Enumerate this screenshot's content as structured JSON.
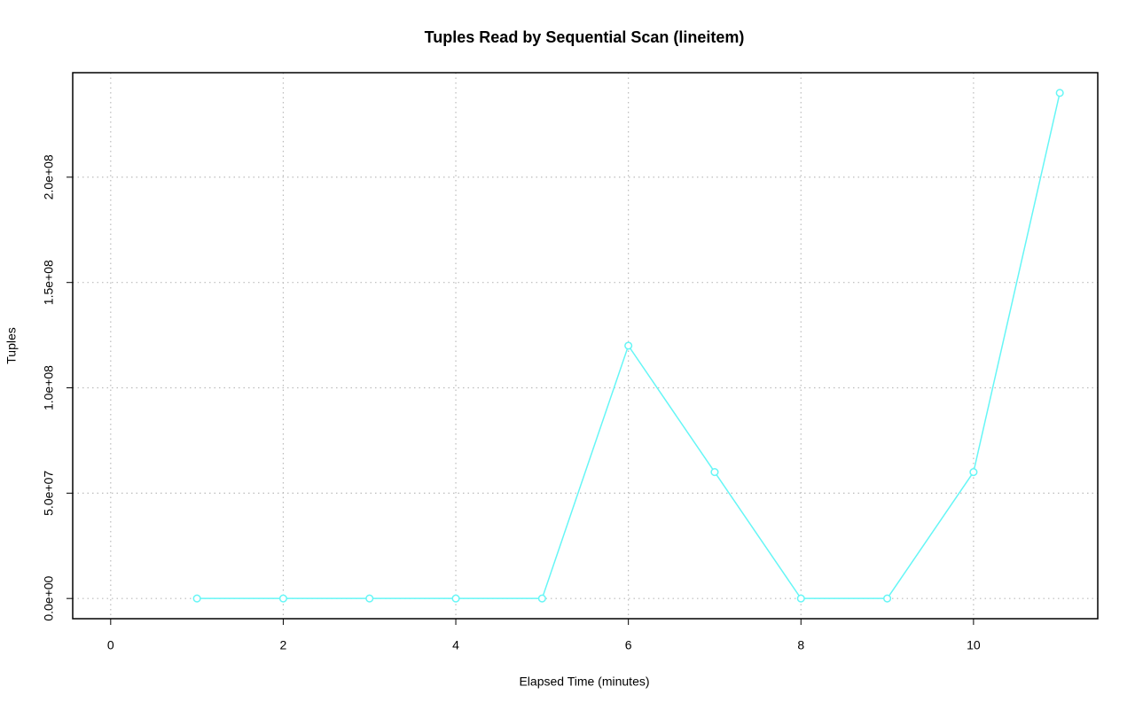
{
  "chart_data": {
    "type": "line",
    "title": "Tuples Read by Sequential Scan (lineitem)",
    "x_label": "Elapsed Time (minutes)",
    "y_label": "Tuples",
    "x": [
      1,
      2,
      3,
      4,
      5,
      6,
      7,
      8,
      9,
      10,
      11
    ],
    "series": [
      {
        "name": "lineitem",
        "color": "#66f6f6",
        "values": [
          0,
          0,
          0,
          0,
          0,
          120000000,
          60000000,
          0,
          0,
          60000000,
          240000000
        ]
      }
    ],
    "xlim": [
      -0.44,
      11.44
    ],
    "xticks": [
      0,
      2,
      4,
      6,
      8,
      10
    ],
    "ylim": [
      -9600000,
      249600000
    ],
    "yticks": [
      {
        "value": 0,
        "label": "0.0e+00"
      },
      {
        "value": 50000000,
        "label": "5.0e+07"
      },
      {
        "value": 100000000,
        "label": "1.0e+08"
      },
      {
        "value": 150000000,
        "label": "1.5e+08"
      },
      {
        "value": 200000000,
        "label": "2.0e+08"
      }
    ],
    "grid": true
  }
}
